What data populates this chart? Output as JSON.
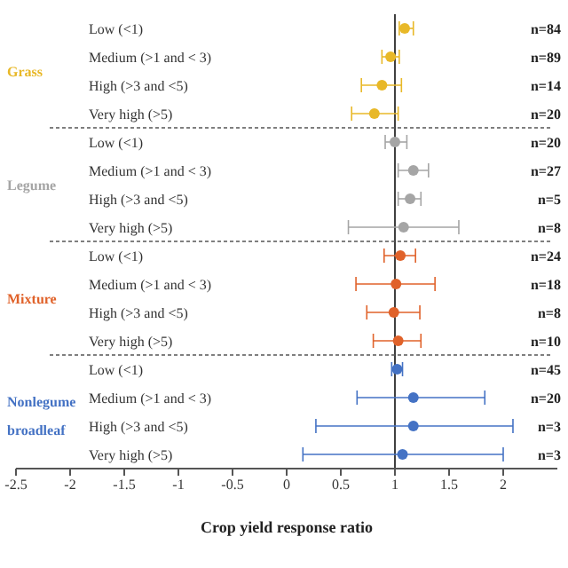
{
  "chart_data": {
    "type": "scatter",
    "orientation": "horizontal",
    "xlabel": "Crop yield response ratio",
    "categories": [
      "Low (<1)",
      "Medium (>1 and < 3)",
      "High (>3 and <5)",
      "Very high (>5)",
      "Low (<1)",
      "Medium (>1 and < 3)",
      "High (>3 and <5)",
      "Very high (>5)",
      "Low (<1)",
      "Medium (>1 and < 3)",
      "High (>3 and <5)",
      "Very high (>5)",
      "Low (<1)",
      "Medium (>1 and < 3)",
      "High (>3 and <5)",
      "Very high (>5)"
    ],
    "series": [
      {
        "name": "Grass",
        "color": "#e8b828",
        "values": [
          1.09,
          0.96,
          0.88,
          0.81,
          null,
          null,
          null,
          null,
          null,
          null,
          null,
          null,
          null,
          null,
          null,
          null
        ],
        "errors": [
          [
            1.04,
            1.17
          ],
          [
            0.88,
            1.04
          ],
          [
            0.69,
            1.06
          ],
          [
            0.6,
            1.03
          ],
          null,
          null,
          null,
          null,
          null,
          null,
          null,
          null,
          null,
          null,
          null,
          null
        ]
      },
      {
        "name": "Legume",
        "color": "#a5a5a5",
        "values": [
          null,
          null,
          null,
          null,
          1.0,
          1.17,
          1.14,
          1.08,
          null,
          null,
          null,
          null,
          null,
          null,
          null,
          null
        ],
        "errors": [
          null,
          null,
          null,
          null,
          [
            0.91,
            1.11
          ],
          [
            1.03,
            1.31
          ],
          [
            1.03,
            1.24
          ],
          [
            0.57,
            1.59
          ],
          null,
          null,
          null,
          null,
          null,
          null,
          null,
          null
        ]
      },
      {
        "name": "Mixture",
        "color": "#e0622a",
        "values": [
          null,
          null,
          null,
          null,
          null,
          null,
          null,
          null,
          1.05,
          1.01,
          0.99,
          1.03,
          null,
          null,
          null,
          null
        ],
        "errors": [
          null,
          null,
          null,
          null,
          null,
          null,
          null,
          null,
          [
            0.9,
            1.19
          ],
          [
            0.64,
            1.37
          ],
          [
            0.74,
            1.23
          ],
          [
            0.8,
            1.24
          ],
          null,
          null,
          null,
          null
        ]
      },
      {
        "name": "Nonlegume broadleaf",
        "color": "#4472c4",
        "values": [
          null,
          null,
          null,
          null,
          null,
          null,
          null,
          null,
          null,
          null,
          null,
          null,
          1.02,
          1.17,
          1.17,
          1.07
        ],
        "errors": [
          null,
          null,
          null,
          null,
          null,
          null,
          null,
          null,
          null,
          null,
          null,
          null,
          [
            0.97,
            1.07
          ],
          [
            0.65,
            1.83
          ],
          [
            0.27,
            2.09
          ],
          [
            0.15,
            2.0
          ]
        ]
      }
    ],
    "xlim": [
      -2.5,
      2.5
    ],
    "xticks": [
      -2.5,
      -2,
      -1.5,
      -1,
      -0.5,
      0,
      0.5,
      1,
      1.5,
      2
    ],
    "ref_lines": [
      {
        "axis": "x",
        "value": 1,
        "color": "#404040"
      }
    ],
    "marker": "circle",
    "annotations": [
      "n=84",
      "n=89",
      "n=14",
      "n=20",
      "n=20",
      "n=27",
      "n=5",
      "n=8",
      "n=24",
      "n=18",
      "n=8",
      "n=10",
      "n=45",
      "n=20",
      "n=3",
      "n=3"
    ]
  }
}
